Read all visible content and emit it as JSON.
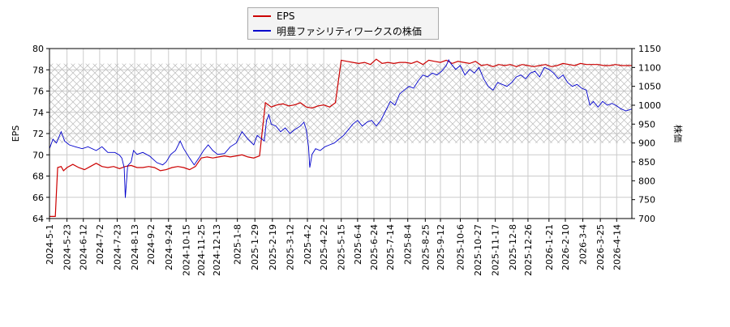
{
  "chart_data": {
    "type": "line",
    "title": "",
    "legend": {
      "placement": "top-center",
      "entries": [
        {
          "name": "EPS",
          "color": "#cc0000"
        },
        {
          "name": "明豊ファシリティワークスの株価",
          "color": "#0000cc"
        }
      ]
    },
    "y_left": {
      "label": "EPS",
      "range": [
        64,
        80
      ],
      "ticks": [
        64,
        66,
        68,
        70,
        72,
        74,
        76,
        78,
        80
      ]
    },
    "y_right": {
      "label": "株価",
      "range": [
        700,
        1150
      ],
      "ticks": [
        700,
        750,
        800,
        850,
        900,
        950,
        1000,
        1050,
        1100,
        1150
      ]
    },
    "x_tick_labels": [
      "2024-5-1",
      "2024-5-23",
      "2024-6-12",
      "2024-7-2",
      "2024-7-23",
      "2024-8-13",
      "2024-9-2",
      "2024-9-24",
      "2024-10-15",
      "2024-11-25",
      "2024-12-13",
      "2025-1-8",
      "2025-1-29",
      "2025-2-19",
      "2025-3-12",
      "2025-4-2",
      "2025-4-22",
      "2025-5-15",
      "2025-6-4",
      "2025-6-24",
      "2025-7-14",
      "2025-8-4",
      "2025-8-25",
      "2025-9-12",
      "2025-10-6",
      "2025-10-27",
      "2025-11-17",
      "2025-12-8",
      "2025-12-26",
      "2026-1-21",
      "2026-2-10",
      "2026-3-4",
      "2026-3-25",
      "2026-4-14"
    ],
    "x_tick_index": [
      0,
      15,
      29,
      43,
      58,
      73,
      87,
      102,
      117,
      130,
      143,
      161,
      176,
      191,
      206,
      221,
      235,
      250,
      264,
      278,
      292,
      307,
      322,
      335,
      352,
      367,
      382,
      397,
      410,
      428,
      442,
      457,
      472,
      486
    ],
    "n_points": 500,
    "hatch_band_right_axis": [
      900,
      1110
    ],
    "grid": true,
    "series": [
      {
        "name": "EPS",
        "axis": "left",
        "color": "#cc0000",
        "points": [
          [
            0,
            64.2
          ],
          [
            5,
            64.2
          ],
          [
            6,
            66.5
          ],
          [
            7,
            68.8
          ],
          [
            10,
            68.9
          ],
          [
            12,
            68.5
          ],
          [
            15,
            68.8
          ],
          [
            20,
            69.1
          ],
          [
            25,
            68.8
          ],
          [
            30,
            68.6
          ],
          [
            35,
            68.9
          ],
          [
            40,
            69.2
          ],
          [
            45,
            68.9
          ],
          [
            50,
            68.8
          ],
          [
            55,
            68.9
          ],
          [
            60,
            68.7
          ],
          [
            65,
            68.9
          ],
          [
            70,
            69.0
          ],
          [
            75,
            68.8
          ],
          [
            80,
            68.8
          ],
          [
            85,
            68.9
          ],
          [
            90,
            68.8
          ],
          [
            95,
            68.5
          ],
          [
            100,
            68.6
          ],
          [
            105,
            68.8
          ],
          [
            110,
            68.9
          ],
          [
            115,
            68.8
          ],
          [
            120,
            68.6
          ],
          [
            125,
            68.9
          ],
          [
            130,
            69.7
          ],
          [
            135,
            69.8
          ],
          [
            140,
            69.7
          ],
          [
            145,
            69.8
          ],
          [
            150,
            69.9
          ],
          [
            155,
            69.8
          ],
          [
            160,
            69.9
          ],
          [
            165,
            70.0
          ],
          [
            170,
            69.8
          ],
          [
            175,
            69.7
          ],
          [
            180,
            69.9
          ],
          [
            185,
            74.9
          ],
          [
            190,
            74.5
          ],
          [
            195,
            74.7
          ],
          [
            200,
            74.8
          ],
          [
            205,
            74.6
          ],
          [
            210,
            74.7
          ],
          [
            215,
            74.9
          ],
          [
            220,
            74.5
          ],
          [
            225,
            74.4
          ],
          [
            230,
            74.6
          ],
          [
            235,
            74.7
          ],
          [
            240,
            74.5
          ],
          [
            245,
            74.9
          ],
          [
            250,
            78.9
          ],
          [
            255,
            78.8
          ],
          [
            260,
            78.7
          ],
          [
            265,
            78.6
          ],
          [
            270,
            78.7
          ],
          [
            275,
            78.5
          ],
          [
            280,
            79.0
          ],
          [
            285,
            78.6
          ],
          [
            290,
            78.7
          ],
          [
            295,
            78.6
          ],
          [
            300,
            78.7
          ],
          [
            305,
            78.7
          ],
          [
            310,
            78.6
          ],
          [
            315,
            78.8
          ],
          [
            320,
            78.5
          ],
          [
            325,
            78.9
          ],
          [
            330,
            78.8
          ],
          [
            335,
            78.7
          ],
          [
            340,
            78.9
          ],
          [
            345,
            78.6
          ],
          [
            350,
            78.8
          ],
          [
            355,
            78.7
          ],
          [
            360,
            78.6
          ],
          [
            365,
            78.8
          ],
          [
            370,
            78.4
          ],
          [
            375,
            78.5
          ],
          [
            380,
            78.3
          ],
          [
            385,
            78.5
          ],
          [
            390,
            78.4
          ],
          [
            395,
            78.5
          ],
          [
            400,
            78.3
          ],
          [
            405,
            78.5
          ],
          [
            410,
            78.4
          ],
          [
            415,
            78.3
          ],
          [
            420,
            78.4
          ],
          [
            425,
            78.5
          ],
          [
            430,
            78.3
          ],
          [
            435,
            78.4
          ],
          [
            440,
            78.6
          ],
          [
            445,
            78.5
          ],
          [
            450,
            78.4
          ],
          [
            455,
            78.6
          ],
          [
            460,
            78.5
          ],
          [
            465,
            78.5
          ],
          [
            470,
            78.5
          ],
          [
            475,
            78.4
          ],
          [
            480,
            78.4
          ],
          [
            485,
            78.5
          ],
          [
            490,
            78.4
          ],
          [
            499,
            78.4
          ]
        ]
      },
      {
        "name": "明豊ファシリティワークスの株価",
        "axis": "right",
        "color": "#0000cc",
        "points": [
          [
            0,
            885
          ],
          [
            3,
            910
          ],
          [
            6,
            900
          ],
          [
            10,
            930
          ],
          [
            13,
            905
          ],
          [
            17,
            895
          ],
          [
            22,
            890
          ],
          [
            28,
            885
          ],
          [
            33,
            890
          ],
          [
            40,
            880
          ],
          [
            45,
            890
          ],
          [
            50,
            875
          ],
          [
            56,
            875
          ],
          [
            60,
            868
          ],
          [
            62,
            860
          ],
          [
            64,
            835
          ],
          [
            65,
            755
          ],
          [
            67,
            840
          ],
          [
            70,
            850
          ],
          [
            72,
            880
          ],
          [
            75,
            870
          ],
          [
            80,
            875
          ],
          [
            86,
            865
          ],
          [
            92,
            848
          ],
          [
            97,
            842
          ],
          [
            100,
            850
          ],
          [
            104,
            870
          ],
          [
            108,
            880
          ],
          [
            112,
            905
          ],
          [
            115,
            885
          ],
          [
            120,
            860
          ],
          [
            124,
            842
          ],
          [
            128,
            860
          ],
          [
            132,
            880
          ],
          [
            136,
            895
          ],
          [
            140,
            880
          ],
          [
            144,
            870
          ],
          [
            150,
            872
          ],
          [
            155,
            890
          ],
          [
            160,
            900
          ],
          [
            165,
            930
          ],
          [
            170,
            910
          ],
          [
            175,
            895
          ],
          [
            178,
            920
          ],
          [
            180,
            915
          ],
          [
            184,
            905
          ],
          [
            186,
            960
          ],
          [
            188,
            975
          ],
          [
            190,
            950
          ],
          [
            194,
            945
          ],
          [
            198,
            930
          ],
          [
            202,
            940
          ],
          [
            206,
            925
          ],
          [
            210,
            935
          ],
          [
            215,
            945
          ],
          [
            218,
            955
          ],
          [
            220,
            935
          ],
          [
            222,
            890
          ],
          [
            223,
            835
          ],
          [
            225,
            870
          ],
          [
            228,
            885
          ],
          [
            232,
            880
          ],
          [
            236,
            890
          ],
          [
            240,
            895
          ],
          [
            244,
            900
          ],
          [
            248,
            910
          ],
          [
            252,
            920
          ],
          [
            256,
            935
          ],
          [
            260,
            950
          ],
          [
            264,
            960
          ],
          [
            268,
            945
          ],
          [
            272,
            955
          ],
          [
            276,
            960
          ],
          [
            280,
            945
          ],
          [
            284,
            960
          ],
          [
            288,
            985
          ],
          [
            292,
            1010
          ],
          [
            296,
            1000
          ],
          [
            300,
            1030
          ],
          [
            304,
            1040
          ],
          [
            308,
            1050
          ],
          [
            312,
            1045
          ],
          [
            316,
            1065
          ],
          [
            320,
            1080
          ],
          [
            324,
            1075
          ],
          [
            328,
            1085
          ],
          [
            332,
            1080
          ],
          [
            336,
            1090
          ],
          [
            340,
            1105
          ],
          [
            342,
            1120
          ],
          [
            344,
            1110
          ],
          [
            348,
            1095
          ],
          [
            352,
            1105
          ],
          [
            356,
            1080
          ],
          [
            360,
            1095
          ],
          [
            364,
            1085
          ],
          [
            368,
            1100
          ],
          [
            372,
            1070
          ],
          [
            376,
            1050
          ],
          [
            380,
            1040
          ],
          [
            384,
            1060
          ],
          [
            388,
            1055
          ],
          [
            392,
            1050
          ],
          [
            396,
            1060
          ],
          [
            400,
            1075
          ],
          [
            404,
            1080
          ],
          [
            408,
            1070
          ],
          [
            412,
            1085
          ],
          [
            416,
            1090
          ],
          [
            420,
            1075
          ],
          [
            424,
            1100
          ],
          [
            428,
            1095
          ],
          [
            432,
            1085
          ],
          [
            436,
            1070
          ],
          [
            440,
            1080
          ],
          [
            444,
            1060
          ],
          [
            448,
            1050
          ],
          [
            452,
            1055
          ],
          [
            456,
            1045
          ],
          [
            460,
            1040
          ],
          [
            463,
            1000
          ],
          [
            466,
            1010
          ],
          [
            470,
            995
          ],
          [
            474,
            1010
          ],
          [
            478,
            1000
          ],
          [
            482,
            1005
          ],
          [
            486,
            998
          ],
          [
            490,
            990
          ],
          [
            494,
            985
          ],
          [
            499,
            990
          ]
        ]
      }
    ]
  }
}
